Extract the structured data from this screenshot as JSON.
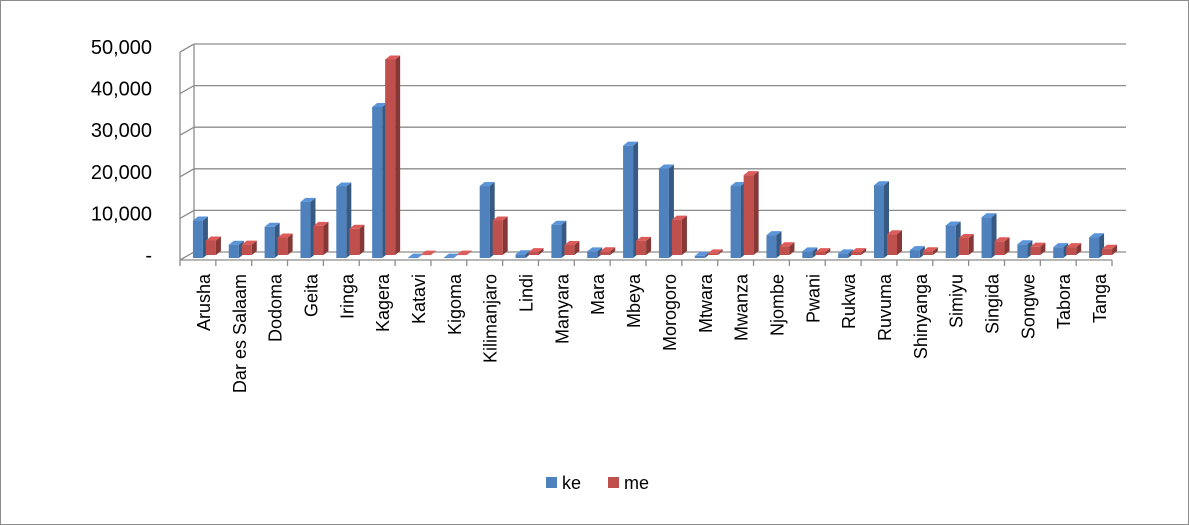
{
  "chart_data": {
    "type": "bar",
    "title": "",
    "xlabel": "",
    "ylabel": "",
    "ylim": [
      0,
      50000
    ],
    "yticks": [
      {
        "value": 0,
        "label": "-"
      },
      {
        "value": 10000,
        "label": "10,000"
      },
      {
        "value": 20000,
        "label": "20,000"
      },
      {
        "value": 30000,
        "label": "30,000"
      },
      {
        "value": 40000,
        "label": "40,000"
      },
      {
        "value": 50000,
        "label": "50,000"
      }
    ],
    "grid": true,
    "legend_position": "bottom",
    "categories": [
      "Arusha",
      "Dar es Salaam",
      "Dodoma",
      "Geita",
      "Iringa",
      "Kagera",
      "Katavi",
      "Kigoma",
      "Kilimanjaro",
      "Lindi",
      "Manyara",
      "Mara",
      "Mbeya",
      "Morogoro",
      "Mtwara",
      "Mwanza",
      "Njombe",
      "Pwani",
      "Rukwa",
      "Ruvuma",
      "Shinyanga",
      "Simiyu",
      "Singida",
      "Songwe",
      "Tabora",
      "Tanga"
    ],
    "series": [
      {
        "name": "ke",
        "color": "#4f81bd",
        "values": [
          9000,
          3200,
          7500,
          13500,
          17200,
          36300,
          100,
          100,
          17300,
          900,
          8000,
          1600,
          27000,
          21500,
          500,
          17300,
          5500,
          1600,
          1100,
          17500,
          1900,
          7800,
          9800,
          3300,
          2600,
          5000
        ]
      },
      {
        "name": "me",
        "color": "#c0504d",
        "values": [
          3500,
          2500,
          4200,
          7000,
          6300,
          47000,
          100,
          100,
          8300,
          700,
          2400,
          900,
          3400,
          8500,
          400,
          19200,
          2100,
          700,
          700,
          5000,
          900,
          4100,
          3300,
          2000,
          1900,
          1500
        ]
      }
    ]
  }
}
